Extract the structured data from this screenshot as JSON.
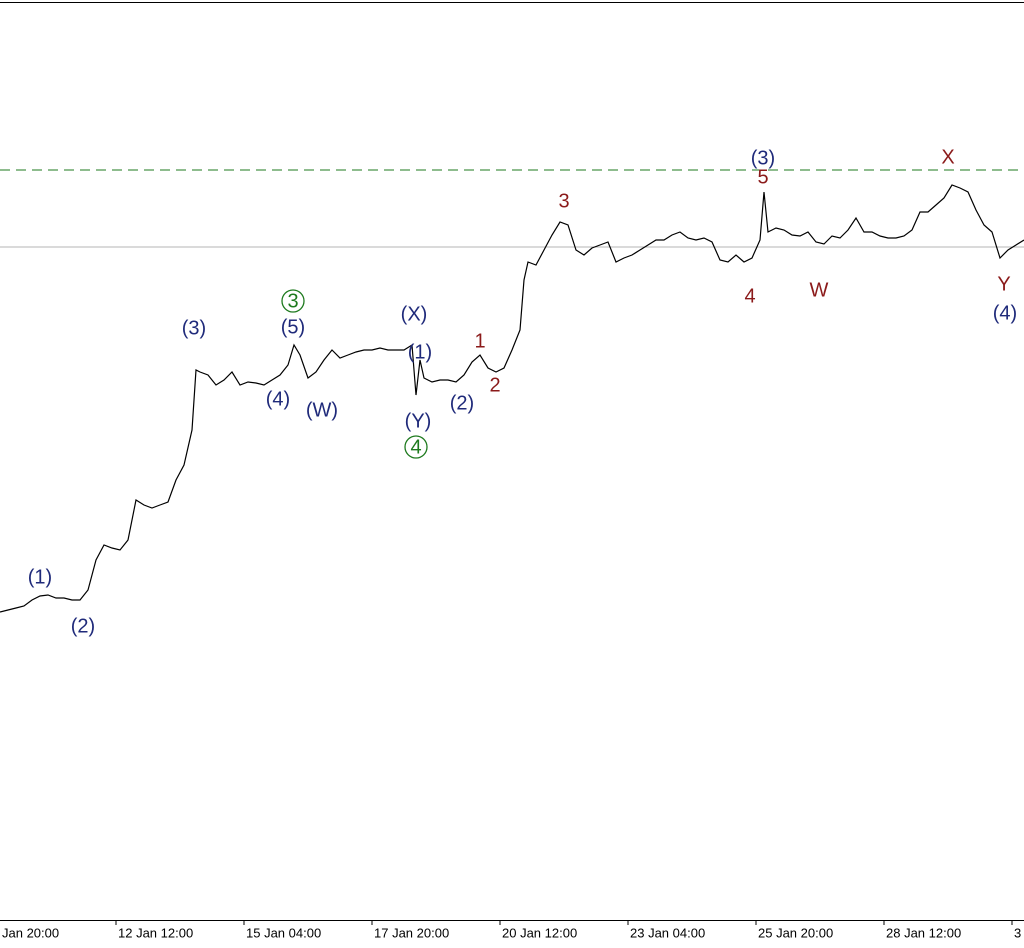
{
  "chart_data": {
    "type": "line",
    "x": [
      0,
      4,
      8,
      12,
      16,
      20,
      24,
      28,
      32,
      36,
      40,
      44,
      48,
      52,
      56,
      60,
      64,
      68,
      72,
      76,
      80,
      84,
      88,
      92,
      96,
      98,
      100,
      104,
      108,
      112,
      116,
      120,
      124,
      128,
      132,
      136,
      140,
      144,
      147,
      150,
      154,
      158,
      162,
      166,
      170,
      174,
      178,
      182,
      186,
      190,
      194,
      198,
      202,
      206,
      208,
      210,
      212,
      216,
      220,
      224,
      228,
      232,
      236,
      240,
      244,
      248,
      252,
      256,
      260,
      262,
      264,
      268,
      272,
      276,
      280,
      284,
      288,
      292,
      296,
      300,
      304,
      308,
      312,
      316,
      320,
      324,
      328,
      332,
      336,
      340,
      344,
      348,
      352,
      356,
      360,
      364,
      368,
      372,
      376,
      380,
      382,
      384,
      388,
      392,
      396,
      400,
      404,
      408,
      412,
      416,
      420,
      424,
      428,
      432,
      436,
      440,
      444,
      448,
      452,
      456,
      460,
      464,
      468,
      472,
      476,
      480,
      484,
      488,
      492,
      496,
      500,
      504,
      508,
      512
    ],
    "values": [
      308,
      310,
      312,
      314,
      320,
      324,
      325,
      322,
      322,
      320,
      320,
      330,
      360,
      375,
      372,
      370,
      380,
      420,
      415,
      412,
      415,
      418,
      440,
      455,
      490,
      550,
      548,
      545,
      535,
      540,
      548,
      535,
      538,
      537,
      535,
      540,
      545,
      555,
      575,
      565,
      542,
      548,
      560,
      570,
      562,
      565,
      568,
      570,
      570,
      572,
      570,
      570,
      570,
      575,
      525,
      560,
      542,
      538,
      540,
      540,
      538,
      545,
      558,
      565,
      552,
      548,
      552,
      570,
      590,
      640,
      658,
      655,
      670,
      685,
      698,
      695,
      670,
      665,
      672,
      675,
      678,
      658,
      662,
      665,
      670,
      675,
      680,
      680,
      685,
      688,
      682,
      680,
      682,
      678,
      660,
      658,
      665,
      658,
      662,
      680,
      728,
      688,
      692,
      690,
      685,
      684,
      688,
      678,
      676,
      684,
      682,
      690,
      702,
      688,
      688,
      684,
      682,
      682,
      684,
      690,
      708,
      708,
      715,
      722,
      735,
      732,
      728,
      710,
      695,
      688,
      662,
      670,
      675,
      680
    ],
    "color": "#000000",
    "xlim": [
      0,
      512
    ],
    "ylim": [
      0,
      920
    ],
    "xticks": [
      {
        "value": -6,
        "label": "Jan 20:00"
      },
      {
        "value": 58,
        "label": "12 Jan 12:00"
      },
      {
        "value": 122,
        "label": "15 Jan 04:00"
      },
      {
        "value": 186,
        "label": "17 Jan 20:00"
      },
      {
        "value": 250,
        "label": "20 Jan 12:00"
      },
      {
        "value": 314,
        "label": "23 Jan 04:00"
      },
      {
        "value": 378,
        "label": "25 Jan 20:00"
      },
      {
        "value": 442,
        "label": "28 Jan 12:00"
      },
      {
        "value": 506,
        "label": "3"
      }
    ],
    "levels": [
      {
        "value": 750,
        "color": "#1e7a1e",
        "dashed": true
      },
      {
        "value": 673,
        "color": "#b4b4b4",
        "dashed": false
      }
    ],
    "annotations": [
      {
        "text": "(1)",
        "x": 20,
        "y": 343,
        "color": "#1f2a7a"
      },
      {
        "text": "(2)",
        "x": 41.5,
        "y": 294,
        "color": "#1f2a7a"
      },
      {
        "text": "(3)",
        "x": 97,
        "y": 592,
        "color": "#1f2a7a"
      },
      {
        "text": "(4)",
        "x": 139,
        "y": 521,
        "color": "#1f2a7a"
      },
      {
        "text": "(5)",
        "x": 146.5,
        "y": 593,
        "color": "#1f2a7a"
      },
      {
        "text": "3",
        "x": 146.5,
        "y": 619,
        "color": "#1e7a1e",
        "circled": true
      },
      {
        "text": "(W)",
        "x": 161,
        "y": 510,
        "color": "#1f2a7a"
      },
      {
        "text": "(X)",
        "x": 207,
        "y": 606,
        "color": "#1f2a7a"
      },
      {
        "text": "(1)",
        "x": 210,
        "y": 568,
        "color": "#1f2a7a"
      },
      {
        "text": "(Y)",
        "x": 209,
        "y": 499,
        "color": "#1f2a7a"
      },
      {
        "text": "4",
        "x": 208,
        "y": 473,
        "color": "#1e7a1e",
        "circled": true
      },
      {
        "text": "(2)",
        "x": 231,
        "y": 517,
        "color": "#1f2a7a"
      },
      {
        "text": "1",
        "x": 240,
        "y": 579,
        "color": "#8b1a1a"
      },
      {
        "text": "2",
        "x": 247.5,
        "y": 535,
        "color": "#8b1a1a"
      },
      {
        "text": "3",
        "x": 282,
        "y": 719,
        "color": "#8b1a1a"
      },
      {
        "text": "(3)",
        "x": 381.5,
        "y": 762,
        "color": "#1f2a7a"
      },
      {
        "text": "5",
        "x": 381.5,
        "y": 743,
        "color": "#8b1a1a"
      },
      {
        "text": "4",
        "x": 375,
        "y": 624,
        "color": "#8b1a1a"
      },
      {
        "text": "W",
        "x": 409.5,
        "y": 630,
        "color": "#8b1a1a"
      },
      {
        "text": "X",
        "x": 474,
        "y": 763,
        "color": "#8b1a1a"
      },
      {
        "text": "Y",
        "x": 502,
        "y": 636,
        "color": "#8b1a1a"
      },
      {
        "text": "(4)",
        "x": 502.5,
        "y": 607,
        "color": "#1f2a7a"
      }
    ]
  }
}
